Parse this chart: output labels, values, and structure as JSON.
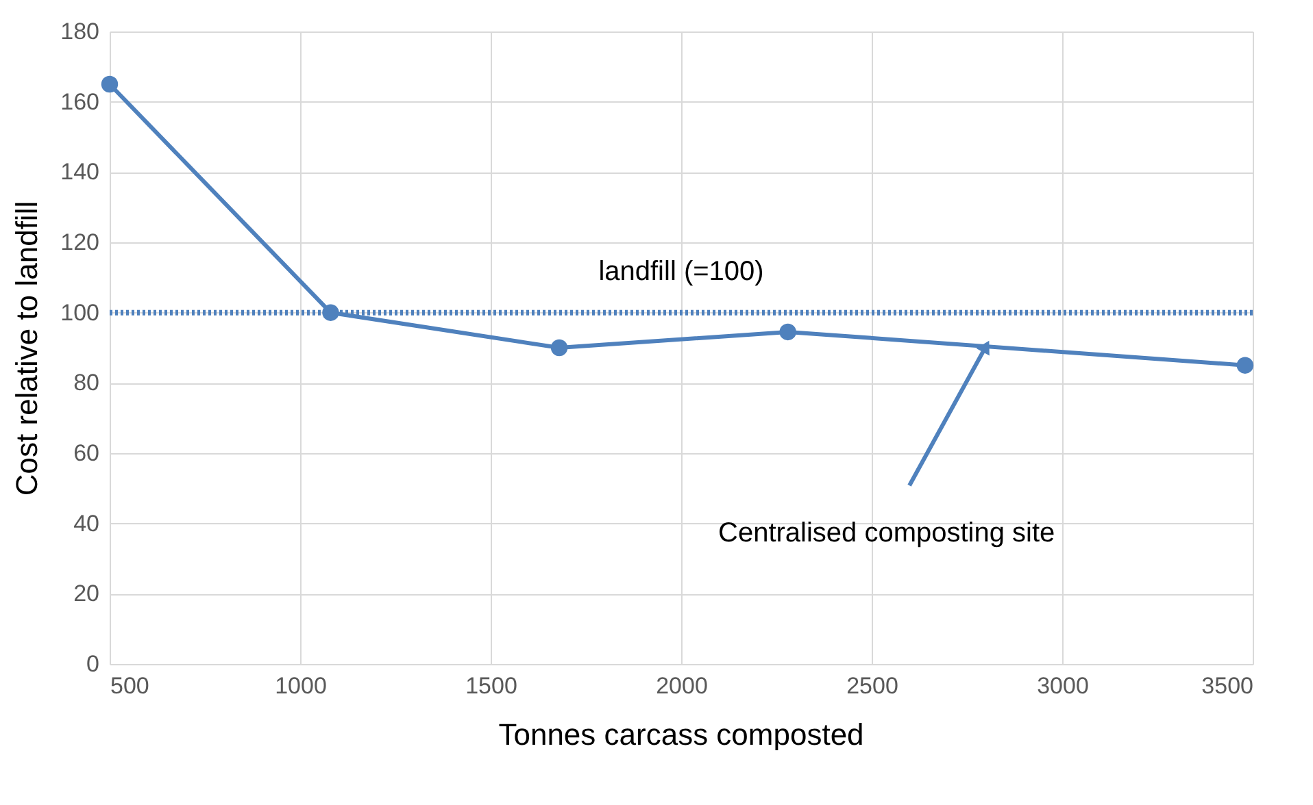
{
  "chart_data": {
    "type": "line",
    "xlabel": "Tonnes carcass composted",
    "ylabel": "Cost relative to landfill",
    "x": [
      500,
      1080,
      1680,
      2280,
      3480
    ],
    "series": [
      {
        "color": "#4f81bd",
        "values": [
          165,
          100,
          90,
          94.5,
          85
        ]
      }
    ],
    "xlim": [
      500,
      3500
    ],
    "xticks": [
      500,
      1000,
      1500,
      2000,
      2500,
      3000,
      3500
    ],
    "ylim": [
      0,
      180
    ],
    "yticks": [
      0,
      20,
      40,
      60,
      80,
      100,
      120,
      140,
      160,
      180
    ],
    "grid": true,
    "marker": "circle",
    "line_style": "solid",
    "ref_lines": [
      {
        "axis": "y",
        "value": 100,
        "label": "landfill (=100)",
        "color": "#4f81bd",
        "line_style": "dotted"
      }
    ],
    "annotations": [
      {
        "text": "Centralised composting site",
        "x": 2800,
        "y": 90.4
      }
    ]
  }
}
